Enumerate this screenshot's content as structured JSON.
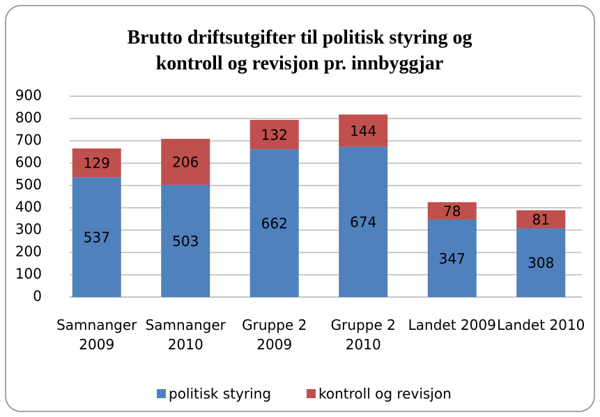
{
  "chart_data": {
    "type": "stacked_bar",
    "title": [
      "Brutto driftsutgifter til politisk styring og",
      "kontroll og revisjon pr. innbyggjar"
    ],
    "categories": [
      "Samnanger 2009",
      "Samnanger 2010",
      "Gruppe 2 2009",
      "Gruppe 2 2010",
      "Landet 2009",
      "Landet 2010"
    ],
    "series": [
      {
        "name": "politisk styring",
        "color": "#4f81bd",
        "values": [
          537,
          503,
          662,
          674,
          347,
          308
        ]
      },
      {
        "name": "kontroll og revisjon",
        "color": "#c0504d",
        "values": [
          129,
          206,
          132,
          144,
          78,
          81
        ]
      }
    ],
    "ylim": [
      0,
      900
    ],
    "yticks": [
      0,
      100,
      200,
      300,
      400,
      500,
      600,
      700,
      800,
      900
    ],
    "grid": true,
    "legend": "bottom"
  }
}
